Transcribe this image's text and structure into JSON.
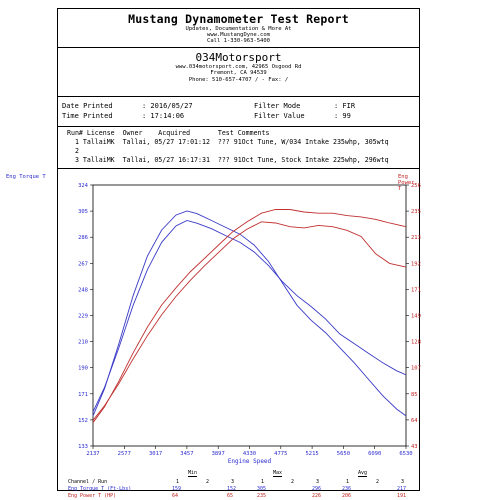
{
  "report": {
    "title": "Mustang Dynamometer Test Report",
    "lines": [
      "Updates, Documentation & More At",
      "www.MustangDyne.com",
      "Call 1-330-963-5400"
    ]
  },
  "shop": {
    "name": "034Motorsport",
    "lines": [
      "www.034motorsport.com, 42965 Osgood Rd",
      "Fremont, CA  94539",
      "Phone: 510-657-4707 / - Fax: /"
    ]
  },
  "info": {
    "date_printed_label": "Date Printed",
    "date_printed": ": 2016/05/27",
    "time_printed_label": "Time Printed",
    "time_printed": ": 17:14:06",
    "filter_mode_label": "Filter Mode",
    "filter_mode": ": FIR",
    "filter_value_label": "Filter Value",
    "filter_value": ": 99"
  },
  "runs": {
    "header": "Run# License  Owner    Acquired       Test Comments",
    "rows": [
      "  1 TallaiMK  Tallai, 05/27 17:01:12  ??? 91Oct Tune, W/034 Intake 235whp, 305wtq",
      "  2",
      "  3 TallaiMK  Tallai, 05/27 16:17:31  ??? 91Oct Tune, Stock Intake 225whp, 296wtq"
    ]
  },
  "chart_data": {
    "type": "line",
    "y_left_label": "Eng Torque T",
    "y_right_label": "Eng Power T",
    "xlabel": "Engine Speed",
    "x_ticks": [
      "2137",
      "2577",
      "3017",
      "3457",
      "3897",
      "4330",
      "4775",
      "5215",
      "5650",
      "6090",
      "6530"
    ],
    "y_left_ticks": [
      "324",
      "305",
      "286",
      "267",
      "248",
      "229",
      "210",
      "190",
      "171",
      "152",
      "133"
    ],
    "y_right_ticks": [
      "256",
      "235",
      "213",
      "192",
      "171",
      "149",
      "128",
      "107",
      "85",
      "64",
      "43"
    ],
    "xlim": [
      2137,
      6530
    ],
    "y_left_lim": [
      133,
      324
    ],
    "y_right_lim": [
      43,
      256
    ],
    "colors": {
      "torque": "#3a3ac8",
      "power": "#c03030"
    },
    "series": [
      {
        "kind": "torque",
        "x": [
          2137,
          2300,
          2500,
          2700,
          2900,
          3100,
          3300,
          3457,
          3600,
          3800,
          4000,
          4200,
          4400,
          4600,
          4800,
          5000,
          5200,
          5400,
          5600,
          5800,
          6000,
          6200,
          6400,
          6530
        ],
        "y": [
          155,
          175,
          208,
          243,
          272,
          291,
          302,
          305,
          303,
          298,
          293,
          288,
          280,
          268,
          252,
          236,
          225,
          216,
          205,
          194,
          182,
          170,
          160,
          155
        ]
      },
      {
        "kind": "torque",
        "x": [
          2137,
          2300,
          2500,
          2700,
          2900,
          3100,
          3300,
          3457,
          3600,
          3800,
          4000,
          4200,
          4400,
          4600,
          4800,
          5000,
          5200,
          5400,
          5600,
          5800,
          6000,
          6200,
          6400,
          6530
        ],
        "y": [
          158,
          176,
          205,
          236,
          262,
          282,
          294,
          298,
          296,
          292,
          287,
          282,
          275,
          265,
          253,
          243,
          235,
          226,
          215,
          208,
          201,
          194,
          188,
          185
        ]
      },
      {
        "kind": "power",
        "x": [
          2137,
          2300,
          2500,
          2700,
          2900,
          3100,
          3300,
          3500,
          3700,
          3900,
          4100,
          4300,
          4500,
          4700,
          4900,
          5100,
          5300,
          5500,
          5700,
          5900,
          6100,
          6300,
          6530
        ],
        "y": [
          62,
          75,
          96,
          119,
          140,
          158,
          172,
          185,
          196,
          207,
          218,
          226,
          233,
          236,
          236,
          234,
          233,
          233,
          231,
          230,
          228,
          225,
          222
        ]
      },
      {
        "kind": "power",
        "x": [
          2137,
          2300,
          2500,
          2700,
          2900,
          3100,
          3300,
          3500,
          3700,
          3900,
          4100,
          4300,
          4500,
          4700,
          4900,
          5100,
          5300,
          5500,
          5700,
          5900,
          6100,
          6300,
          6530
        ],
        "y": [
          64,
          76,
          94,
          114,
          133,
          150,
          165,
          178,
          190,
          201,
          212,
          220,
          226,
          225,
          222,
          221,
          223,
          222,
          219,
          214,
          200,
          192,
          189
        ]
      }
    ]
  },
  "summary": {
    "headers": [
      "Min",
      "Max",
      "Avg"
    ],
    "channel_header": "Channel / Run",
    "run_numbers": [
      "1",
      "2",
      "3",
      "1",
      "2",
      "3",
      "1",
      "2",
      "3"
    ],
    "rows": [
      {
        "label": "Eng Torque T (Ft-Lbs)",
        "values": [
          "159",
          "",
          "152",
          "305",
          "",
          "296",
          "236",
          "",
          "217"
        ]
      },
      {
        "label": "Eng Power T (HP)",
        "values": [
          "64",
          "",
          "65",
          "235",
          "",
          "226",
          "206",
          "",
          "191"
        ]
      }
    ]
  }
}
